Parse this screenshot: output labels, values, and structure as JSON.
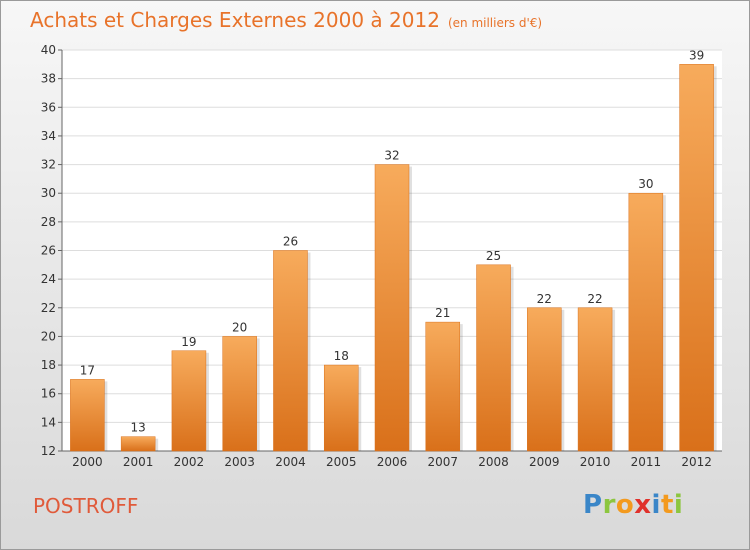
{
  "header": {
    "title": "Achats et Charges Externes 2000 à 2012",
    "unit": "(en milliers d'€)"
  },
  "footer": {
    "commune": "POSTROFF",
    "logo": "Proxiti"
  },
  "colors": {
    "bar": "#f0902e",
    "bar_light": "#f7ab5c",
    "bar_dark": "#d9701a",
    "title": "#e8732a",
    "commune": "#e05a3a"
  },
  "chart_data": {
    "type": "bar",
    "title": "Achats et Charges Externes 2000 à 2012",
    "subtitle": "(en milliers d'€)",
    "xlabel": "",
    "ylabel": "",
    "categories": [
      "2000",
      "2001",
      "2002",
      "2003",
      "2004",
      "2005",
      "2006",
      "2007",
      "2008",
      "2009",
      "2010",
      "2011",
      "2012"
    ],
    "values": [
      17,
      13,
      19,
      20,
      26,
      18,
      32,
      21,
      25,
      22,
      22,
      30,
      39
    ],
    "ylim": [
      12,
      40
    ],
    "yticks": [
      12,
      14,
      16,
      18,
      20,
      22,
      24,
      26,
      28,
      30,
      32,
      34,
      36,
      38,
      40
    ],
    "grid": true,
    "legend": "none"
  }
}
